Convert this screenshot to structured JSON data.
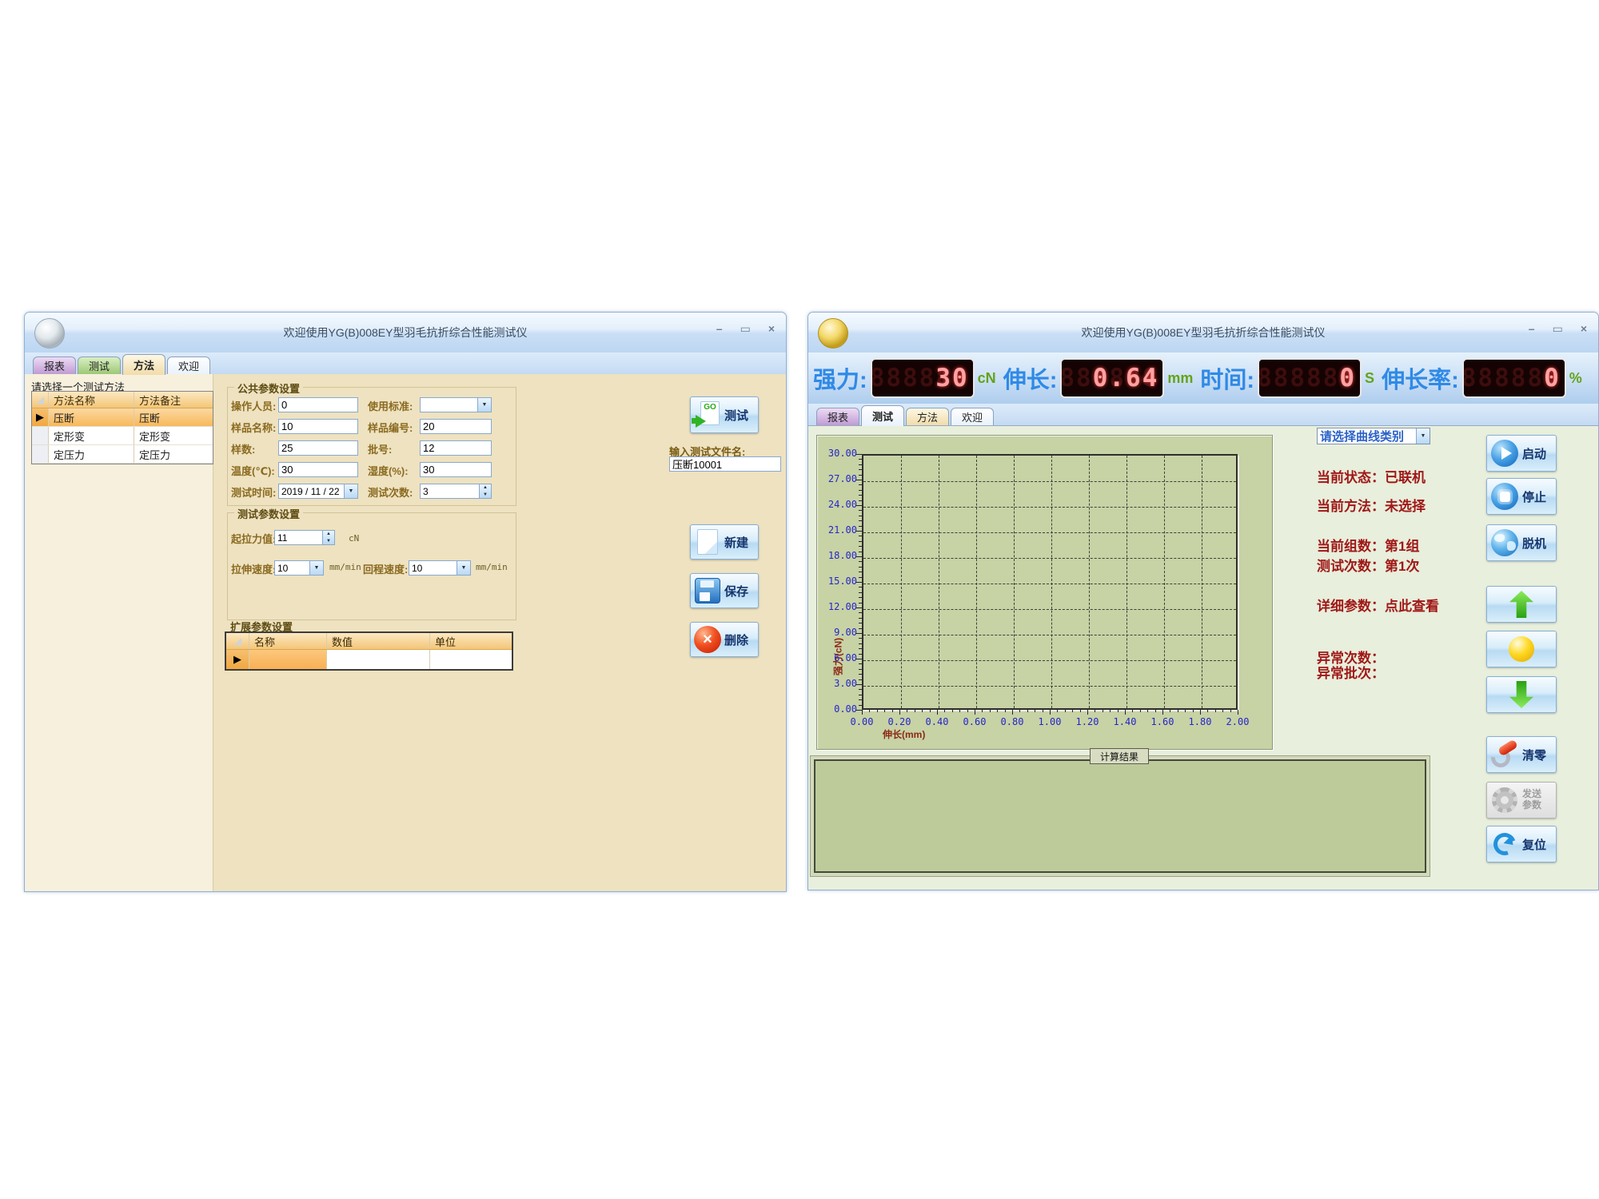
{
  "left_window": {
    "title": "欢迎使用YG(B)008EY型羽毛抗折综合性能测试仪",
    "controls": {
      "minimize": "–",
      "maximize": "▭",
      "close": "×"
    },
    "tabs": [
      {
        "label": "报表"
      },
      {
        "label": "测试"
      },
      {
        "label": "方法"
      },
      {
        "label": "欢迎"
      }
    ],
    "active_tab": "方法",
    "method_list": {
      "caption": "请选择一个测试方法",
      "columns": [
        "方法名称",
        "方法备注"
      ],
      "selector": "▶",
      "rows": [
        {
          "name": "压断",
          "note": "压断"
        },
        {
          "name": "定形变",
          "note": "定形变"
        },
        {
          "name": "定压力",
          "note": "定压力"
        }
      ]
    },
    "common_group": {
      "title": "公共参数设置",
      "operator_label": "操作人员:",
      "operator_value": "0",
      "standard_label": "使用标准:",
      "standard_value": "",
      "sample_name_label": "样品名称:",
      "sample_name_value": "10",
      "sample_no_label": "样品编号:",
      "sample_no_value": "20",
      "sample_count_label": "样数:",
      "sample_count_value": "25",
      "batch_label": "批号:",
      "batch_value": "12",
      "temp_label": "温度(℃):",
      "temp_value": "30",
      "humidity_label": "湿度(%):",
      "humidity_value": "30",
      "time_label": "测试时间:",
      "time_value": "2019 / 11 / 22",
      "times_label": "测试次数:",
      "times_value": "3"
    },
    "test_group": {
      "title": "测试参数设置",
      "pull_label": "起拉力值:",
      "pull_value": "11",
      "pull_unit": "cN",
      "speed_label": "拉伸速度:",
      "speed_value": "10",
      "speed_unit": "mm/min",
      "return_label": "回程速度:",
      "return_value": "10",
      "return_unit": "mm/min"
    },
    "ext_group": {
      "title": "扩展参数设置",
      "columns": [
        "名称",
        "数值",
        "单位"
      ],
      "selector": "▶"
    },
    "go_icon_text": "GO",
    "test_button": "测试",
    "file_label": "输入测试文件名:",
    "file_value": "压断10001",
    "new_button": "新建",
    "save_button": "保存",
    "delete_button": "删除"
  },
  "right_window": {
    "title": "欢迎使用YG(B)008EY型羽毛抗折综合性能测试仪",
    "controls": {
      "minimize": "–",
      "maximize": "▭",
      "close": "×"
    },
    "led_ghost": "888888",
    "displays": [
      {
        "label": "强力:",
        "value": "30",
        "unit": "cN"
      },
      {
        "label": "伸长:",
        "value": "0.64",
        "unit": "mm"
      },
      {
        "label": "时间:",
        "value": "0",
        "unit": "S"
      },
      {
        "label": "伸长率:",
        "value": "0",
        "unit": "%"
      }
    ],
    "tabs": [
      {
        "label": "报表"
      },
      {
        "label": "测试"
      },
      {
        "label": "方法"
      },
      {
        "label": "欢迎"
      }
    ],
    "active_tab": "测试",
    "curve_select_label": "请选择曲线类别",
    "status": {
      "state": "当前状态：已联机",
      "method": "当前方法：未选择",
      "group": "当前组数：第1组",
      "times": "测试次数：第1次",
      "detail": "详细参数：点此查看",
      "abnormal_times": "异常次数：",
      "abnormal_batch": "异常批次："
    },
    "result_label": "计算结果",
    "buttons": {
      "start": "启动",
      "stop": "停止",
      "offline": "脱机",
      "clear": "清零",
      "send": "发送参数",
      "reset": "复位"
    }
  },
  "chart_data": {
    "type": "line",
    "title": "",
    "xlabel": "伸长(mm)",
    "ylabel": "强力(cN)",
    "xlim": [
      0.0,
      2.0
    ],
    "ylim": [
      0.0,
      30.0
    ],
    "xtick_step": 0.2,
    "ytick_step": 3.0,
    "tick_decimals": 2,
    "grid": "dashed",
    "legend": "none",
    "series": []
  }
}
